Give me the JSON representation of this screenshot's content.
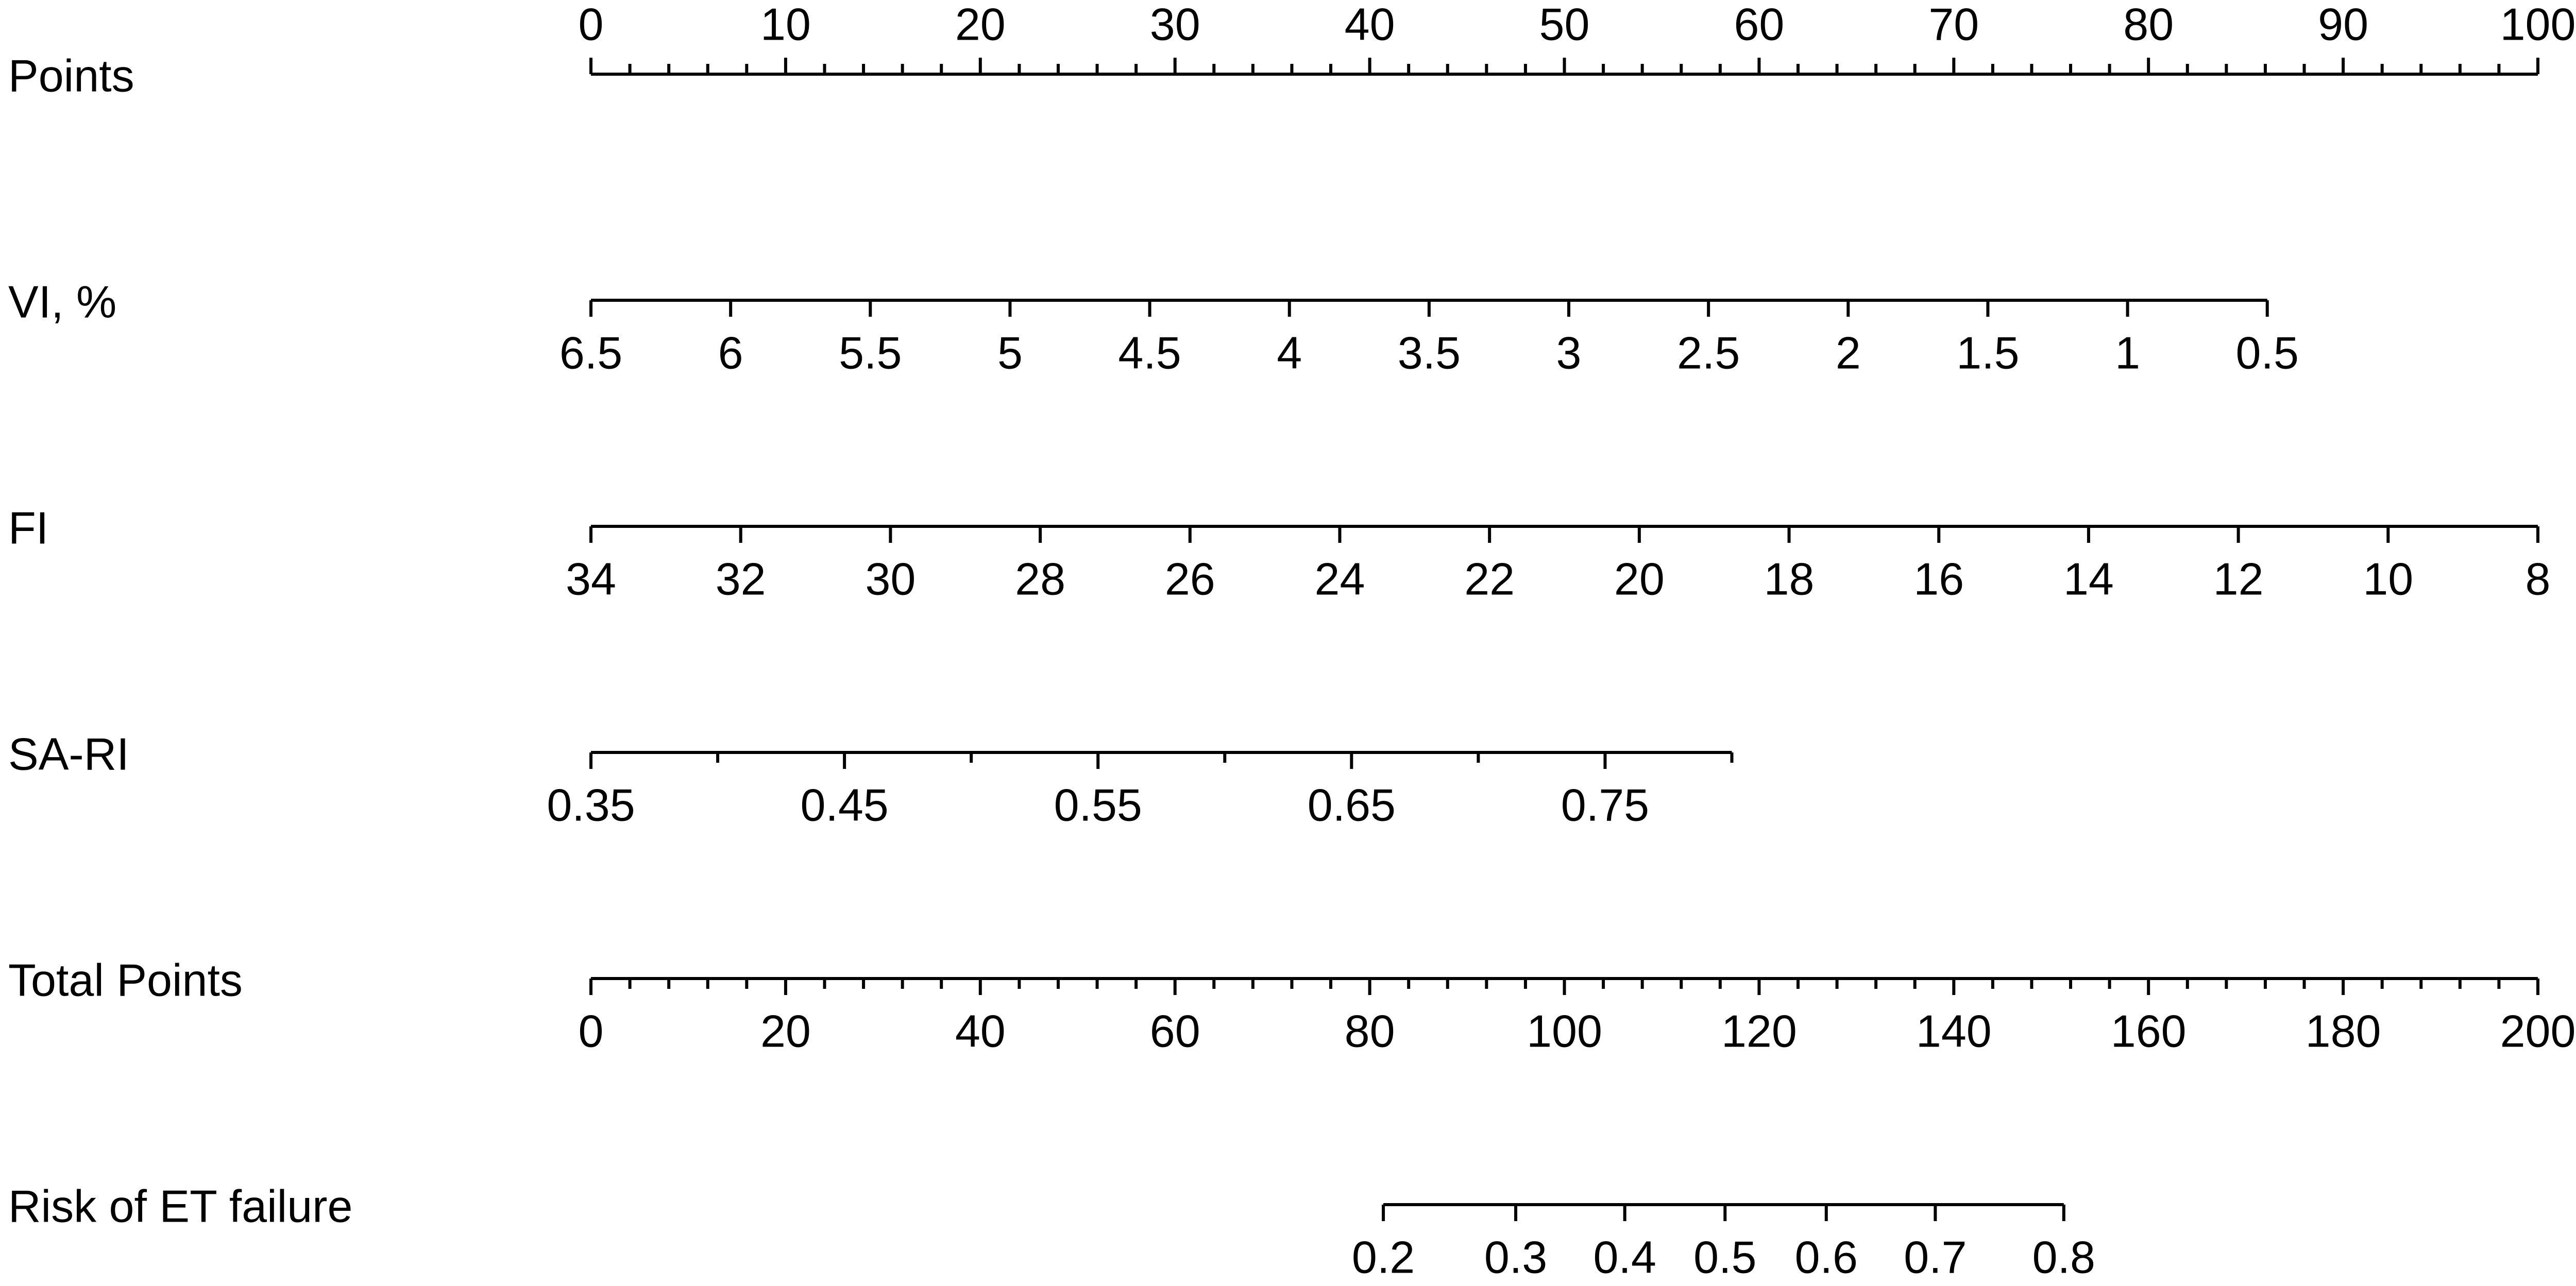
{
  "chart_data": {
    "type": "nomogram",
    "scales": [
      {
        "label": "Points",
        "xlim": [
          0,
          100
        ],
        "points": [
          0,
          100
        ],
        "tick_side": "top",
        "ticks": [
          0,
          10,
          20,
          30,
          40,
          50,
          60,
          70,
          80,
          90,
          100
        ],
        "minor_ticks": [
          2,
          4,
          6,
          8,
          12,
          14,
          16,
          18,
          22,
          24,
          26,
          28,
          32,
          34,
          36,
          38,
          42,
          44,
          46,
          48,
          52,
          54,
          56,
          58,
          62,
          64,
          66,
          68,
          72,
          74,
          76,
          78,
          82,
          84,
          86,
          88,
          92,
          94,
          96,
          98
        ]
      },
      {
        "label": "VI, %",
        "xlim": [
          6.5,
          0.5
        ],
        "points": [
          0,
          86.1
        ],
        "ticks": [
          6.5,
          6,
          5.5,
          5,
          4.5,
          4,
          3.5,
          3,
          2.5,
          2,
          1.5,
          1,
          0.5
        ]
      },
      {
        "label": "FI",
        "xlim": [
          34,
          8
        ],
        "points": [
          0,
          100
        ],
        "ticks": [
          34,
          32,
          30,
          28,
          26,
          24,
          22,
          20,
          18,
          16,
          14,
          12,
          10,
          8
        ]
      },
      {
        "label": "SA-RI",
        "xlim": [
          0.35,
          0.8
        ],
        "points": [
          0,
          58.6
        ],
        "ticks": [
          0.35,
          0.45,
          0.55,
          0.65,
          0.75
        ],
        "minor_ticks": [
          0.4,
          0.5,
          0.6,
          0.7,
          0.8
        ]
      },
      {
        "label": "Total Points",
        "xlim": [
          0,
          200
        ],
        "points": [
          0,
          100
        ],
        "ticks": [
          0,
          20,
          40,
          60,
          80,
          100,
          120,
          140,
          160,
          180,
          200
        ],
        "minor_ticks": [
          4,
          8,
          12,
          16,
          24,
          28,
          32,
          36,
          44,
          48,
          52,
          56,
          64,
          68,
          72,
          76,
          84,
          88,
          92,
          96,
          104,
          108,
          112,
          116,
          124,
          128,
          132,
          136,
          144,
          148,
          152,
          156,
          164,
          168,
          172,
          176,
          184,
          188,
          192,
          196
        ]
      },
      {
        "label": "Risk of ET failure",
        "ticks": [
          0.2,
          0.3,
          0.4,
          0.5,
          0.6,
          0.7,
          0.8
        ],
        "tick_positions": [
          81.4,
          95.0,
          106.2,
          116.5,
          126.9,
          138.1,
          151.3
        ]
      }
    ]
  }
}
